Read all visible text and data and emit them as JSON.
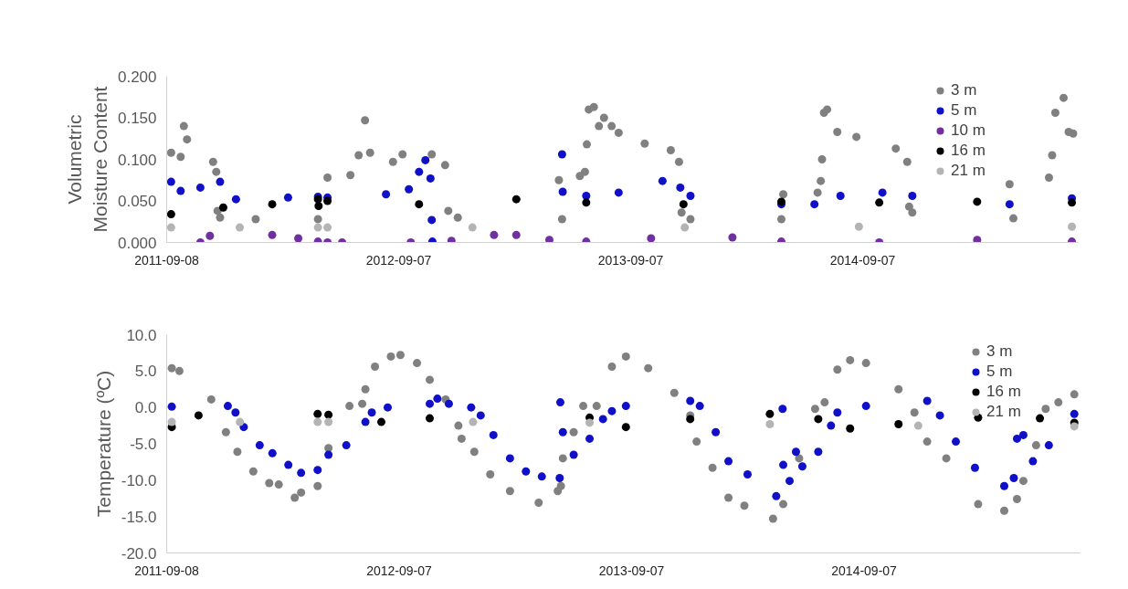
{
  "chart_data": [
    {
      "type": "scatter",
      "ylabel": "Volumetric\nMoisture Content",
      "marker": "circle",
      "legend": "top right",
      "xlim": [
        "2011-09-08",
        "2015-08-12"
      ],
      "xticks": [
        "2011-09-08",
        "2012-09-07",
        "2013-09-07",
        "2014-09-07"
      ],
      "ylim": [
        0,
        0.2
      ],
      "yticks": [
        {
          "value": 0,
          "label": "0.000"
        },
        {
          "value": 0.05,
          "label": "0.050"
        },
        {
          "value": 0.1,
          "label": "0.100"
        },
        {
          "value": 0.15,
          "label": "0.150"
        },
        {
          "value": 0.2,
          "label": "0.200"
        }
      ],
      "series": [
        {
          "name": "3 m",
          "color": "#808080",
          "x": [
            "2011-09-15",
            "2011-09-30",
            "2011-10-05",
            "2011-10-10",
            "2011-11-20",
            "2011-11-25",
            "2011-11-27",
            "2011-12-01",
            "2012-01-26",
            "2012-05-03",
            "2012-05-18",
            "2012-06-23",
            "2012-07-06",
            "2012-07-16",
            "2012-07-24",
            "2012-08-29",
            "2012-09-13",
            "2012-10-29",
            "2012-11-19",
            "2012-11-24",
            "2012-12-09",
            "2013-05-22",
            "2013-05-17",
            "2013-06-19",
            "2013-06-27",
            "2013-06-30",
            "2013-07-03",
            "2013-07-11",
            "2013-07-19",
            "2013-07-27",
            "2013-08-08",
            "2013-08-19",
            "2013-09-29",
            "2013-11-09",
            "2013-11-22",
            "2013-11-26",
            "2013-12-10",
            "2014-05-02",
            "2014-05-05",
            "2014-06-28",
            "2014-07-03",
            "2014-07-05",
            "2014-07-08",
            "2014-07-13",
            "2014-07-29",
            "2014-08-28",
            "2014-10-29",
            "2014-11-16",
            "2014-11-19",
            "2014-11-24",
            "2015-05-02",
            "2015-04-26",
            "2015-06-27",
            "2015-07-02",
            "2015-07-07",
            "2015-07-20",
            "2015-07-28",
            "2015-08-04"
          ],
          "values": [
            0.108,
            0.103,
            0.14,
            0.124,
            0.097,
            0.085,
            0.038,
            0.03,
            0.028,
            0.028,
            0.078,
            0.081,
            0.105,
            0.147,
            0.108,
            0.097,
            0.106,
            0.106,
            0.093,
            0.038,
            0.03,
            0.028,
            0.075,
            0.08,
            0.085,
            0.118,
            0.16,
            0.163,
            0.14,
            0.15,
            0.14,
            0.132,
            0.119,
            0.111,
            0.097,
            0.036,
            0.028,
            0.028,
            0.058,
            0.06,
            0.074,
            0.1,
            0.156,
            0.16,
            0.133,
            0.127,
            0.113,
            0.097,
            0.043,
            0.036,
            0.029,
            0.07,
            0.078,
            0.105,
            0.156,
            0.174,
            0.133,
            0.131
          ]
        },
        {
          "name": "5 m",
          "color": "#1010c8",
          "x": [
            "2011-09-15",
            "2011-09-30",
            "2011-10-31",
            "2011-12-01",
            "2011-12-26",
            "2012-03-17",
            "2012-05-03",
            "2012-05-18",
            "2012-08-18",
            "2012-09-23",
            "2012-10-09",
            "2012-10-19",
            "2012-10-27",
            "2012-10-29",
            "2012-10-30",
            "2013-05-22",
            "2013-05-23",
            "2013-06-29",
            "2013-08-19",
            "2013-10-27",
            "2013-11-24",
            "2013-12-10",
            "2014-05-02",
            "2014-06-23",
            "2014-08-03",
            "2014-10-08",
            "2014-11-24",
            "2015-04-26",
            "2015-08-02"
          ],
          "values": [
            0.073,
            0.062,
            0.066,
            0.073,
            0.052,
            0.054,
            0.055,
            0.054,
            0.058,
            0.064,
            0.085,
            0.099,
            0.077,
            0.027,
            0.001,
            0.106,
            0.061,
            0.056,
            0.06,
            0.074,
            0.066,
            0.056,
            0.046,
            0.046,
            0.056,
            0.06,
            0.056,
            0.046,
            0.053
          ]
        },
        {
          "name": "10 m",
          "color": "#7030a0",
          "x": [
            "2011-10-31",
            "2011-11-15",
            "2012-02-21",
            "2012-04-02",
            "2012-05-03",
            "2012-05-18",
            "2012-06-10",
            "2012-09-26",
            "2012-11-29",
            "2013-02-04",
            "2013-03-11",
            "2013-05-02",
            "2013-06-29",
            "2013-10-09",
            "2014-02-14",
            "2014-05-02",
            "2014-10-03",
            "2015-03-06",
            "2015-08-02"
          ],
          "values": [
            0.0,
            0.008,
            0.009,
            0.005,
            0.001,
            0.0,
            0.0,
            0.0,
            0.002,
            0.009,
            0.009,
            0.003,
            0.001,
            0.005,
            0.006,
            0.001,
            0.0,
            0.003,
            0.001
          ]
        },
        {
          "name": "16 m",
          "color": "#000000",
          "x": [
            "2011-09-15",
            "2011-12-06",
            "2012-02-21",
            "2012-05-03",
            "2012-05-04",
            "2012-05-18",
            "2012-10-09",
            "2013-03-11",
            "2013-06-29",
            "2013-11-29",
            "2014-05-02",
            "2014-10-03",
            "2015-03-06",
            "2015-08-02"
          ],
          "values": [
            0.034,
            0.042,
            0.046,
            0.052,
            0.044,
            0.05,
            0.046,
            0.052,
            0.048,
            0.046,
            0.049,
            0.048,
            0.049,
            0.048
          ]
        },
        {
          "name": "21 m",
          "color": "#b4b4b4",
          "x": [
            "2011-09-15",
            "2012-01-01",
            "2012-05-03",
            "2012-05-18",
            "2013-01-01",
            "2013-12-01",
            "2014-09-01",
            "2015-08-02"
          ],
          "values": [
            0.018,
            0.018,
            0.018,
            0.018,
            0.018,
            0.018,
            0.019,
            0.019
          ]
        }
      ]
    },
    {
      "type": "scatter",
      "ylabel": "Temperature (ºC)",
      "marker": "circle",
      "legend": "top right",
      "xlim": [
        "2011-09-08",
        "2015-08-12"
      ],
      "xticks": [
        "2011-09-08",
        "2012-09-07",
        "2013-09-07",
        "2014-09-07"
      ],
      "ylim": [
        -20,
        10
      ],
      "yticks": [
        {
          "value": -20,
          "label": "-20.0"
        },
        {
          "value": -15,
          "label": "-15.0"
        },
        {
          "value": -10,
          "label": "-10.0"
        },
        {
          "value": -5,
          "label": "-5.0"
        },
        {
          "value": 0,
          "label": "0.0"
        },
        {
          "value": 5,
          "label": "5.0"
        },
        {
          "value": 10,
          "label": "10.0"
        }
      ],
      "series": [
        {
          "name": "3 m",
          "color": "#808080",
          "x": [
            "2011-09-16",
            "2011-09-28",
            "2011-11-17",
            "2011-12-10",
            "2011-12-28",
            "2012-01-22",
            "2012-02-16",
            "2012-03-02",
            "2012-03-27",
            "2012-04-06",
            "2012-05-02",
            "2012-05-19",
            "2012-06-21",
            "2012-07-11",
            "2012-07-16",
            "2012-07-31",
            "2012-08-25",
            "2012-09-09",
            "2012-10-05",
            "2012-10-25",
            "2012-11-19",
            "2012-12-09",
            "2012-12-14",
            "2013-01-03",
            "2013-01-28",
            "2013-02-28",
            "2013-04-14",
            "2013-05-14",
            "2013-05-19",
            "2013-05-22",
            "2013-06-08",
            "2013-06-23",
            "2013-07-14",
            "2013-08-07",
            "2013-08-29",
            "2013-10-03",
            "2013-11-13",
            "2013-12-08",
            "2013-12-18",
            "2014-01-12",
            "2014-02-06",
            "2014-03-03",
            "2014-04-17",
            "2014-05-03",
            "2014-05-28",
            "2014-06-22",
            "2014-07-07",
            "2014-07-27",
            "2014-08-16",
            "2014-09-10",
            "2014-10-31",
            "2014-11-25",
            "2014-12-15",
            "2015-01-14",
            "2015-03-05",
            "2015-04-15",
            "2015-05-05",
            "2015-05-15",
            "2015-06-04",
            "2015-06-19",
            "2015-07-09",
            "2015-08-03"
          ],
          "values": [
            5.4,
            5.0,
            1.1,
            -3.4,
            -6.1,
            -8.8,
            -10.4,
            -10.6,
            -12.4,
            -11.7,
            -10.8,
            -5.6,
            0.2,
            0.5,
            2.5,
            5.6,
            7.0,
            7.2,
            6.1,
            3.8,
            1.1,
            -2.5,
            -4.3,
            -6.1,
            -9.2,
            -11.5,
            -13.1,
            -11.5,
            -10.8,
            -7.0,
            -3.4,
            0.2,
            0.2,
            5.6,
            7.0,
            5.4,
            2.0,
            -1.1,
            -4.7,
            -8.3,
            -12.4,
            -13.5,
            -15.3,
            -13.3,
            -7.0,
            -0.2,
            0.7,
            5.2,
            6.5,
            6.1,
            2.5,
            -0.7,
            -4.7,
            -7.0,
            -13.3,
            -14.2,
            -12.6,
            -10.1,
            -5.2,
            -0.2,
            0.7,
            1.8
          ]
        },
        {
          "name": "5 m",
          "color": "#1010c8",
          "x": [
            "2011-09-16",
            "2011-12-13",
            "2011-12-25",
            "2012-01-07",
            "2012-02-01",
            "2012-02-21",
            "2012-03-17",
            "2012-04-06",
            "2012-05-02",
            "2012-05-19",
            "2012-06-16",
            "2012-07-16",
            "2012-07-26",
            "2012-08-20",
            "2012-10-25",
            "2012-11-06",
            "2012-11-24",
            "2012-12-29",
            "2013-01-13",
            "2013-02-02",
            "2013-02-28",
            "2013-03-25",
            "2013-04-19",
            "2013-05-17",
            "2013-05-18",
            "2013-05-22",
            "2013-06-08",
            "2013-07-03",
            "2013-07-24",
            "2013-08-07",
            "2013-08-29",
            "2013-12-08",
            "2013-12-23",
            "2014-01-17",
            "2014-02-06",
            "2014-03-08",
            "2014-04-22",
            "2014-05-02",
            "2014-05-03",
            "2014-05-13",
            "2014-05-23",
            "2014-06-02",
            "2014-06-27",
            "2014-07-17",
            "2014-07-27",
            "2014-09-10",
            "2014-12-15",
            "2015-01-04",
            "2015-01-29",
            "2015-02-28",
            "2015-04-15",
            "2015-04-30",
            "2015-05-05",
            "2015-05-15",
            "2015-05-30",
            "2015-06-24",
            "2015-08-03"
          ],
          "values": [
            0.1,
            0.2,
            -0.7,
            -2.7,
            -5.2,
            -6.3,
            -7.9,
            -9.0,
            -8.6,
            -6.5,
            -5.2,
            -2.0,
            -0.7,
            0.0,
            0.5,
            1.2,
            0.5,
            0.0,
            -1.1,
            -3.8,
            -7.0,
            -8.8,
            -9.5,
            -9.7,
            0.7,
            -3.4,
            -6.5,
            -4.3,
            -1.6,
            -0.5,
            0.2,
            0.9,
            0.2,
            -3.4,
            -7.4,
            -9.2,
            -12.2,
            -0.2,
            -7.9,
            -10.1,
            -6.1,
            -8.1,
            -6.1,
            -2.5,
            -0.7,
            0.2,
            0.9,
            -1.1,
            -4.7,
            -8.3,
            -10.8,
            -9.7,
            -4.3,
            -3.8,
            -7.4,
            -5.2,
            -0.9
          ]
        },
        {
          "name": "16 m",
          "color": "#000000",
          "x": [
            "2011-09-16",
            "2011-10-28",
            "2012-05-02",
            "2012-05-19",
            "2012-08-10",
            "2012-10-25",
            "2013-07-03",
            "2013-08-29",
            "2013-12-08",
            "2014-04-12",
            "2014-06-27",
            "2014-08-16",
            "2014-10-31",
            "2015-03-05",
            "2015-06-10",
            "2015-08-03"
          ],
          "values": [
            -2.7,
            -1.1,
            -0.9,
            -1.0,
            -2.0,
            -1.5,
            -1.4,
            -2.7,
            -1.6,
            -0.9,
            -1.6,
            -2.9,
            -2.3,
            -1.4,
            -1.5,
            -2.1
          ]
        },
        {
          "name": "21 m",
          "color": "#b4b4b4",
          "x": [
            "2011-09-16",
            "2012-01-01",
            "2012-05-02",
            "2012-05-19",
            "2013-01-01",
            "2013-07-03",
            "2014-04-12",
            "2014-12-01",
            "2015-08-03"
          ],
          "values": [
            -2.0,
            -2.0,
            -2.0,
            -2.0,
            -2.0,
            -2.1,
            -2.3,
            -2.5,
            -2.6
          ]
        }
      ]
    }
  ]
}
